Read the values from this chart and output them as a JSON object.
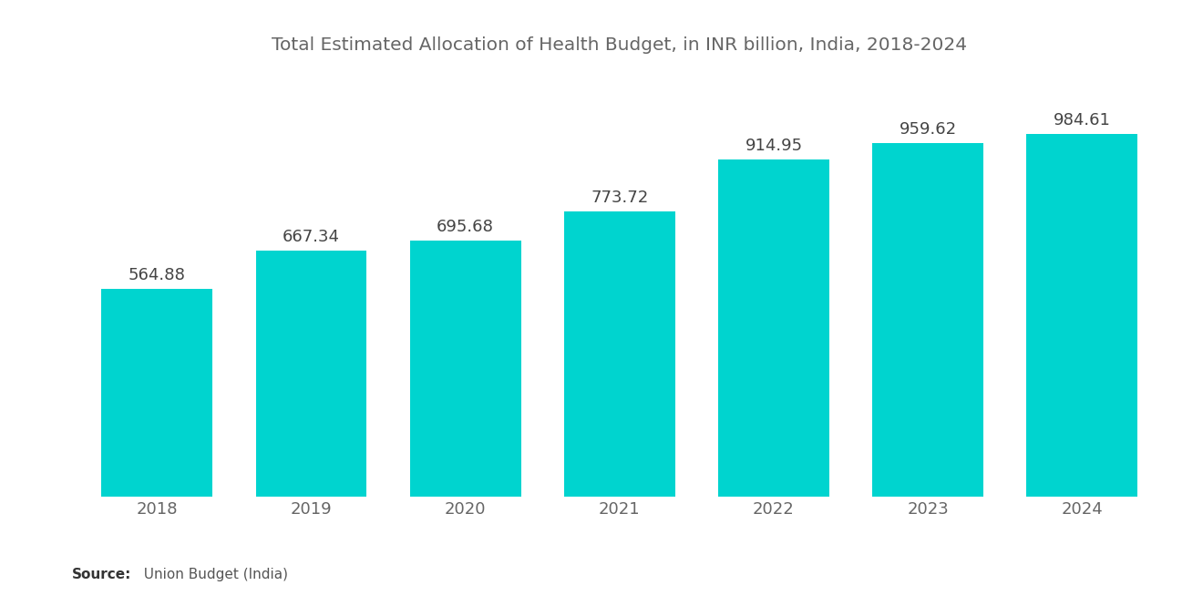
{
  "title": "Total Estimated Allocation of Health Budget, in INR billion, India, 2018-2024",
  "categories": [
    "2018",
    "2019",
    "2020",
    "2021",
    "2022",
    "2023",
    "2024"
  ],
  "values": [
    564.88,
    667.34,
    695.68,
    773.72,
    914.95,
    959.62,
    984.61
  ],
  "bar_color": "#00D4CF",
  "title_color": "#666666",
  "label_color": "#444444",
  "tick_color": "#666666",
  "source_bold": "Source:",
  "source_text": "  Union Budget (India)",
  "background_color": "#ffffff",
  "ylim": [
    0,
    1150
  ],
  "bar_width": 0.72,
  "title_fontsize": 14.5,
  "label_fontsize": 13,
  "tick_fontsize": 13,
  "source_fontsize": 11
}
